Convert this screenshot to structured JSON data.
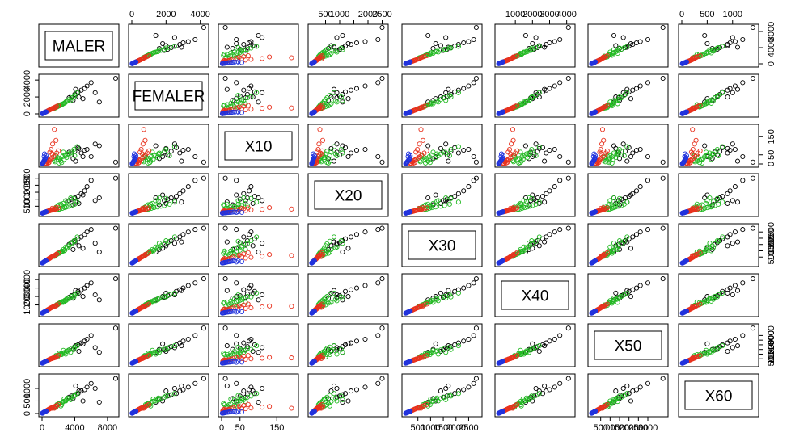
{
  "chart_data": {
    "type": "scatter",
    "variables": [
      "MALER",
      "FEMALER",
      "X10",
      "X20",
      "X30",
      "X40",
      "X50",
      "X60"
    ],
    "group_colors": [
      "#000000",
      "#22b922",
      "#e8321e",
      "#2233dd"
    ],
    "axes": {
      "MALER": {
        "lim": [
          0,
          9000
        ],
        "ticks": [
          0,
          4000,
          8000
        ],
        "tick_labels": [
          "0",
          "4000",
          "8000"
        ]
      },
      "FEMALER": {
        "lim": [
          0,
          4300
        ],
        "ticks": [
          0,
          2000,
          4000
        ],
        "tick_labels": [
          "0",
          "2000",
          "4000"
        ]
      },
      "X10": {
        "lim": [
          0,
          200
        ],
        "ticks": [
          0,
          50,
          150
        ],
        "tick_labels": [
          "0",
          "50",
          "150"
        ]
      },
      "X20": {
        "lim": [
          0,
          2600
        ],
        "ticks": [
          500,
          1000,
          1500,
          2000,
          2500
        ],
        "tick_labels": [
          "500",
          "1000",
          "",
          "2000",
          "2500"
        ]
      },
      "X30": {
        "lim": [
          0,
          2900
        ],
        "ticks": [
          500,
          1000,
          1500,
          2000,
          2500
        ],
        "tick_labels": [
          "500",
          "1000",
          "1500",
          "2000",
          "2500"
        ]
      },
      "X40": {
        "lim": [
          0,
          4300
        ],
        "ticks": [
          1000,
          2000,
          3000,
          4000
        ],
        "tick_labels": [
          "1000",
          "2000",
          "3000",
          "4000"
        ]
      },
      "X50": {
        "lim": [
          0,
          3900
        ],
        "ticks": [
          500,
          1000,
          1500,
          2000,
          2500,
          3000
        ],
        "tick_labels": [
          "500",
          "1000",
          "1500",
          "2000",
          "2500",
          "3000"
        ]
      },
      "X60": {
        "lim": [
          0,
          1450
        ],
        "ticks": [
          0,
          500,
          1000
        ],
        "tick_labels": [
          "0",
          "500",
          "1000"
        ]
      }
    },
    "points": [
      [
        9000,
        4200,
        10,
        2500,
        2800,
        4100,
        3800,
        1400,
        0
      ],
      [
        6000,
        3700,
        40,
        2350,
        2700,
        3600,
        3000,
        1200,
        0
      ],
      [
        5500,
        3300,
        80,
        1900,
        2500,
        3300,
        2600,
        1050,
        0
      ],
      [
        5200,
        3000,
        75,
        1600,
        2300,
        3000,
        2400,
        950,
        0
      ],
      [
        4800,
        2800,
        60,
        1400,
        2100,
        2800,
        2200,
        900,
        0
      ],
      [
        4400,
        2600,
        90,
        1200,
        1950,
        2600,
        2000,
        800,
        0
      ],
      [
        4000,
        2300,
        70,
        1100,
        1800,
        2300,
        1800,
        750,
        0
      ],
      [
        3600,
        2100,
        50,
        1000,
        1650,
        2100,
        1600,
        700,
        0
      ],
      [
        3300,
        1900,
        65,
        900,
        1500,
        1900,
        1450,
        650,
        0
      ],
      [
        6500,
        2500,
        110,
        900,
        1600,
        2200,
        1700,
        1000,
        0
      ],
      [
        5000,
        1800,
        40,
        1300,
        1200,
        2000,
        2100,
        500,
        0
      ],
      [
        4500,
        2000,
        85,
        700,
        1400,
        2400,
        1300,
        900,
        0
      ],
      [
        3800,
        1600,
        30,
        600,
        1100,
        1800,
        1500,
        600,
        0
      ],
      [
        7000,
        1400,
        100,
        1100,
        900,
        1600,
        1200,
        450,
        0
      ],
      [
        4100,
        2900,
        15,
        800,
        1700,
        2700,
        1900,
        1100,
        0
      ],
      [
        4300,
        2500,
        95,
        800,
        2100,
        2400,
        1900,
        800,
        1
      ],
      [
        4000,
        2200,
        45,
        650,
        1750,
        2200,
        1750,
        720,
        1
      ],
      [
        3600,
        1900,
        70,
        550,
        1550,
        2000,
        1600,
        650,
        1
      ],
      [
        3300,
        1700,
        55,
        500,
        1400,
        1850,
        1450,
        600,
        1
      ],
      [
        3000,
        1500,
        35,
        450,
        1200,
        1700,
        1300,
        550,
        1
      ],
      [
        2800,
        1300,
        50,
        400,
        1050,
        1550,
        1200,
        500,
        1
      ],
      [
        2500,
        1150,
        40,
        350,
        950,
        1400,
        1100,
        450,
        1
      ],
      [
        2200,
        1000,
        30,
        300,
        850,
        1250,
        1000,
        420,
        1
      ],
      [
        2000,
        900,
        25,
        280,
        780,
        1150,
        900,
        380,
        1
      ],
      [
        1800,
        800,
        20,
        250,
        700,
        1050,
        800,
        350,
        1
      ],
      [
        3500,
        1600,
        60,
        1100,
        1600,
        1800,
        1200,
        550,
        1
      ],
      [
        2900,
        1400,
        45,
        900,
        1300,
        1500,
        1000,
        500,
        1
      ],
      [
        2600,
        1200,
        65,
        700,
        1100,
        1300,
        1400,
        480,
        1
      ],
      [
        3900,
        2000,
        80,
        1050,
        1800,
        1950,
        1500,
        700,
        1
      ],
      [
        2300,
        1100,
        15,
        650,
        900,
        1350,
        950,
        300,
        1
      ],
      [
        2100,
        950,
        5,
        600,
        800,
        1200,
        1100,
        400,
        1
      ],
      [
        1900,
        850,
        35,
        500,
        750,
        1000,
        700,
        330,
        1
      ],
      [
        1700,
        750,
        45,
        420,
        650,
        950,
        850,
        250,
        1
      ],
      [
        2700,
        1250,
        25,
        450,
        1000,
        1450,
        1150,
        580,
        1
      ],
      [
        3100,
        1550,
        55,
        850,
        1250,
        1650,
        1350,
        620,
        1
      ],
      [
        1600,
        700,
        12,
        350,
        600,
        900,
        750,
        260,
        1
      ],
      [
        2400,
        1050,
        8,
        550,
        980,
        1300,
        950,
        350,
        1
      ],
      [
        1500,
        650,
        18,
        330,
        550,
        850,
        650,
        240,
        1
      ],
      [
        2000,
        1000,
        72,
        380,
        850,
        1100,
        850,
        360,
        2
      ],
      [
        1800,
        900,
        60,
        320,
        750,
        1000,
        780,
        320,
        2
      ],
      [
        1600,
        800,
        48,
        280,
        650,
        900,
        700,
        290,
        2
      ],
      [
        1400,
        700,
        40,
        250,
        580,
        800,
        620,
        260,
        2
      ],
      [
        1200,
        600,
        32,
        220,
        500,
        700,
        540,
        230,
        2
      ],
      [
        1000,
        500,
        26,
        190,
        430,
        600,
        470,
        200,
        2
      ],
      [
        900,
        450,
        22,
        170,
        380,
        540,
        420,
        180,
        2
      ],
      [
        800,
        400,
        18,
        150,
        340,
        480,
        380,
        160,
        2
      ],
      [
        700,
        350,
        15,
        130,
        300,
        420,
        330,
        140,
        2
      ],
      [
        600,
        300,
        12,
        110,
        260,
        360,
        290,
        120,
        2
      ],
      [
        1500,
        700,
        190,
        300,
        620,
        850,
        600,
        210,
        2
      ],
      [
        1300,
        650,
        110,
        270,
        560,
        760,
        560,
        250,
        2
      ],
      [
        1100,
        550,
        80,
        240,
        480,
        660,
        500,
        220,
        2
      ],
      [
        950,
        480,
        65,
        200,
        420,
        580,
        450,
        190,
        2
      ],
      [
        850,
        420,
        8,
        180,
        380,
        520,
        400,
        170,
        2
      ],
      [
        750,
        380,
        5,
        160,
        330,
        460,
        350,
        150,
        2
      ],
      [
        650,
        320,
        10,
        140,
        290,
        400,
        310,
        130,
        2
      ],
      [
        1700,
        780,
        130,
        400,
        700,
        880,
        650,
        280,
        2
      ],
      [
        550,
        270,
        4,
        120,
        240,
        330,
        260,
        110,
        2
      ],
      [
        500,
        250,
        6,
        100,
        220,
        300,
        240,
        100,
        2
      ],
      [
        450,
        220,
        3,
        90,
        200,
        270,
        210,
        90,
        2
      ],
      [
        1250,
        620,
        55,
        350,
        540,
        720,
        520,
        210,
        2
      ],
      [
        400,
        200,
        30,
        80,
        180,
        240,
        190,
        80,
        3
      ],
      [
        350,
        170,
        26,
        70,
        160,
        210,
        170,
        70,
        3
      ],
      [
        300,
        150,
        22,
        60,
        140,
        180,
        150,
        60,
        3
      ],
      [
        260,
        130,
        18,
        50,
        120,
        160,
        130,
        55,
        3
      ],
      [
        220,
        110,
        15,
        45,
        100,
        140,
        110,
        48,
        3
      ],
      [
        190,
        95,
        12,
        40,
        85,
        120,
        95,
        42,
        3
      ],
      [
        160,
        80,
        10,
        34,
        72,
        100,
        80,
        36,
        3
      ],
      [
        130,
        65,
        8,
        28,
        60,
        85,
        66,
        30,
        3
      ],
      [
        100,
        50,
        6,
        22,
        48,
        68,
        52,
        24,
        3
      ],
      [
        80,
        40,
        4,
        18,
        38,
        55,
        42,
        19,
        3
      ],
      [
        60,
        30,
        3,
        14,
        30,
        42,
        32,
        15,
        3
      ],
      [
        40,
        20,
        2,
        10,
        20,
        30,
        22,
        10,
        3
      ],
      [
        500,
        240,
        45,
        110,
        200,
        280,
        220,
        95,
        3
      ],
      [
        450,
        220,
        35,
        100,
        190,
        260,
        200,
        85,
        3
      ],
      [
        300,
        140,
        55,
        70,
        130,
        190,
        150,
        65,
        3
      ],
      [
        250,
        120,
        40,
        60,
        110,
        160,
        120,
        55,
        3
      ]
    ]
  }
}
